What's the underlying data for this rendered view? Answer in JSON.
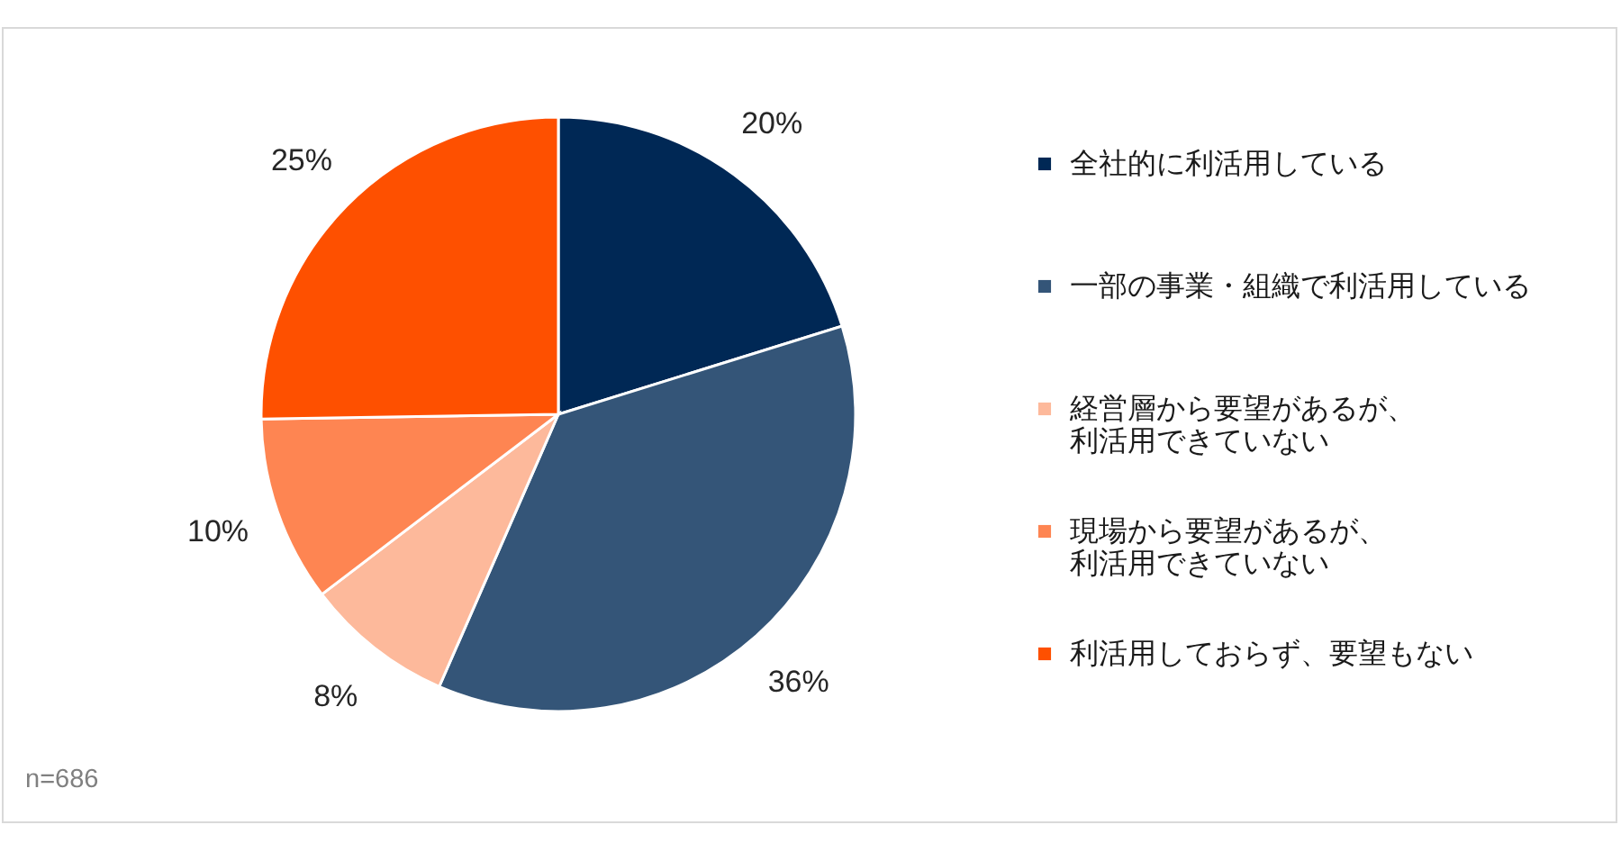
{
  "chart_data": {
    "type": "pie",
    "categories": [
      "全社的に利活用している",
      "一部の事業・組織で利活用している",
      "経営層から要望があるが、利活用できていない",
      "現場から要望があるが、利活用できていない",
      "利活用しておらず、要望もない"
    ],
    "values": [
      20,
      36,
      8,
      10,
      25
    ],
    "colors": [
      "#002855",
      "#345578",
      "#fdb99b",
      "#fe8552",
      "#fe5000"
    ],
    "value_labels": [
      "20%",
      "36%",
      "8%",
      "10%",
      "25%"
    ],
    "legend": "right",
    "annotations": [
      "n=686"
    ]
  }
}
